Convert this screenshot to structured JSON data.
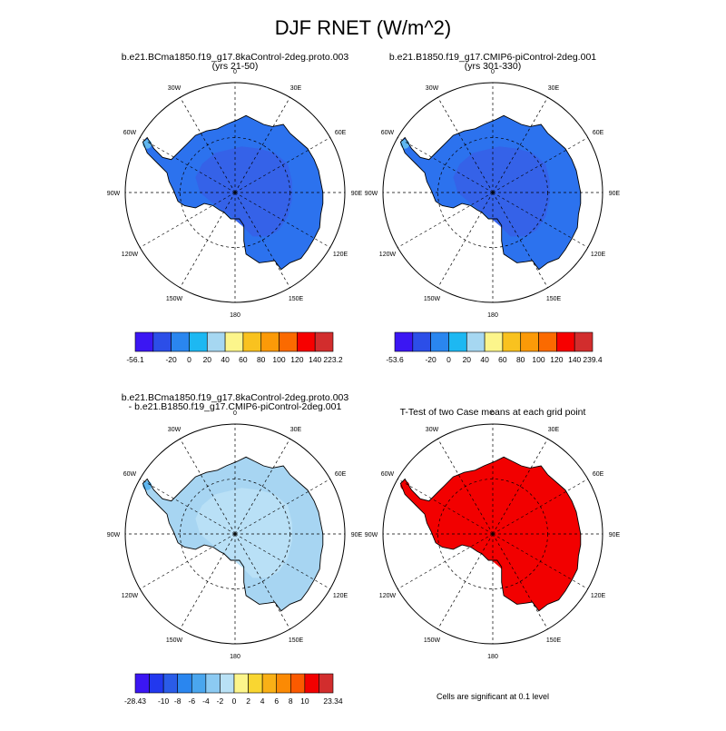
{
  "title": "DJF RNET (W/m^2)",
  "panels": [
    {
      "id": "case1",
      "title_lines": [
        "b.e21.BCma1850.f19_g17.8kaControl-2deg.proto.003",
        "(yrs 21-50)"
      ],
      "fill_color": "#2c72ee",
      "inner_color": "#3562e8",
      "coast_color": "#5fb7f0"
    },
    {
      "id": "case2",
      "title_lines": [
        "b.e21.B1850.f19_g17.CMIP6-piControl-2deg.001",
        "(yrs 301-330)"
      ],
      "fill_color": "#2c72ee",
      "inner_color": "#3562e8",
      "coast_color": "#5fb7f0"
    },
    {
      "id": "diff",
      "title_lines": [
        "b.e21.BCma1850.f19_g17.8kaControl-2deg.proto.003",
        "- b.e21.B1850.f19_g17.CMIP6-piControl-2deg.001"
      ],
      "fill_color": "#a7d5f2",
      "inner_color": "#b9e0f6",
      "coast_color": "#5fb7f0"
    },
    {
      "id": "ttest",
      "title_lines": [
        "T-Test of two Case means at each grid point"
      ],
      "fill_color": "#f20000",
      "inner_color": "#f20000",
      "coast_color": "#f20000"
    }
  ],
  "lon_labels": [
    "0",
    "30E",
    "60E",
    "90E",
    "120E",
    "150E",
    "180",
    "150W",
    "120W",
    "90W",
    "60W",
    "30W"
  ],
  "colorbars": [
    {
      "id": "cb1",
      "colors": [
        "#3b16f3",
        "#2c4ee8",
        "#2a86ef",
        "#1db8f2",
        "#a6d7f1",
        "#fcf58b",
        "#f9c21f",
        "#fb9a08",
        "#fb6a00",
        "#f70000",
        "#d22d2d"
      ],
      "labels": [
        "-56.1",
        "-20",
        "0",
        "20",
        "40",
        "60",
        "80",
        "100",
        "120",
        "140",
        "223.2"
      ]
    },
    {
      "id": "cb2",
      "colors": [
        "#3b16f3",
        "#2c4ee8",
        "#2a86ef",
        "#1db8f2",
        "#a6d7f1",
        "#fcf58b",
        "#f9c21f",
        "#fb9a08",
        "#fb6a00",
        "#f70000",
        "#d22d2d"
      ],
      "labels": [
        "-53.6",
        "-20",
        "0",
        "20",
        "40",
        "60",
        "80",
        "100",
        "120",
        "140",
        "239.4"
      ]
    },
    {
      "id": "cb3",
      "colors": [
        "#3b16f3",
        "#2238ee",
        "#2a5ce8",
        "#2a86ef",
        "#4aa6ee",
        "#8ccaf2",
        "#b9e1f5",
        "#fcf58b",
        "#f9d631",
        "#f9b016",
        "#fb8a04",
        "#fb5a00",
        "#f20000",
        "#d22d2d"
      ],
      "labels": [
        "-28.43",
        "-10",
        "-8",
        "-6",
        "-4",
        "-2",
        "0",
        "2",
        "4",
        "6",
        "8",
        "10",
        "23.34"
      ]
    }
  ],
  "footnote": "Cells are significant at 0.1 level"
}
